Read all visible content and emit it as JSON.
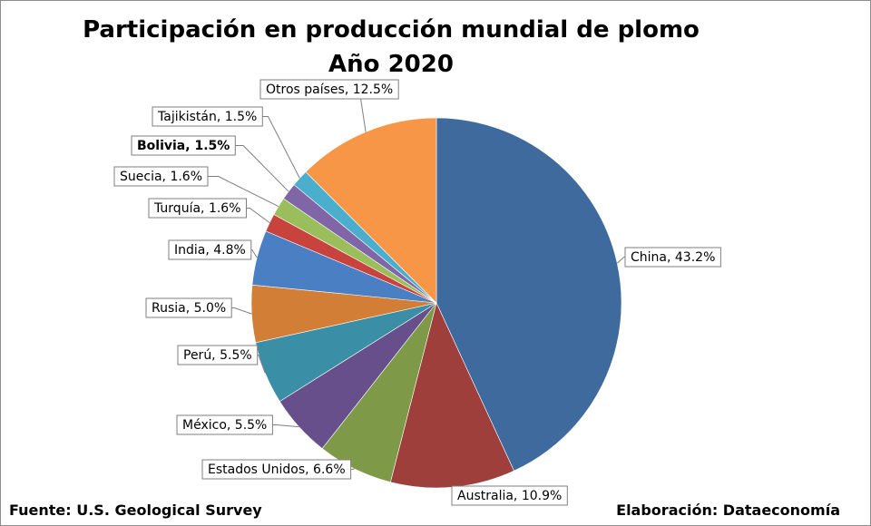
{
  "chart_data": {
    "type": "pie",
    "title": "Participación en producción mundial de plomo",
    "subtitle": "Año 2020",
    "slices": [
      {
        "label": "China",
        "value": 43.2,
        "text": "China, 43.2%",
        "color": "#3F6A9D"
      },
      {
        "label": "Australia",
        "value": 10.9,
        "text": "Australia, 10.9%",
        "color": "#9E3F3C"
      },
      {
        "label": "Estados Unidos",
        "value": 6.6,
        "text": "Estados Unidos, 6.6%",
        "color": "#7E9A48"
      },
      {
        "label": "México",
        "value": 5.5,
        "text": "México, 5.5%",
        "color": "#674F8C"
      },
      {
        "label": "Perú",
        "value": 5.5,
        "text": "Perú, 5.5%",
        "color": "#3A8FA6"
      },
      {
        "label": "Rusia",
        "value": 5.0,
        "text": "Rusia, 5.0%",
        "color": "#D37E36"
      },
      {
        "label": "India",
        "value": 4.8,
        "text": "India, 4.8%",
        "color": "#4B7FC4"
      },
      {
        "label": "Turquía",
        "value": 1.6,
        "text": "Turquía, 1.6%",
        "color": "#C8423E"
      },
      {
        "label": "Suecia",
        "value": 1.6,
        "text": "Suecia, 1.6%",
        "color": "#9ABE5B"
      },
      {
        "label": "Bolivia",
        "value": 1.5,
        "text": "Bolivia, 1.5%",
        "color": "#8066A6",
        "bold": true
      },
      {
        "label": "Tajikistán",
        "value": 1.5,
        "text": "Tajikistán, 1.5%",
        "color": "#4BAECC"
      },
      {
        "label": "Otros países",
        "value": 12.5,
        "text": "Otros países, 12.5%",
        "color": "#F79647"
      }
    ]
  },
  "footer": {
    "source": "Fuente: U.S. Geological Survey",
    "credit": "Elaboración: Dataeconomía"
  }
}
